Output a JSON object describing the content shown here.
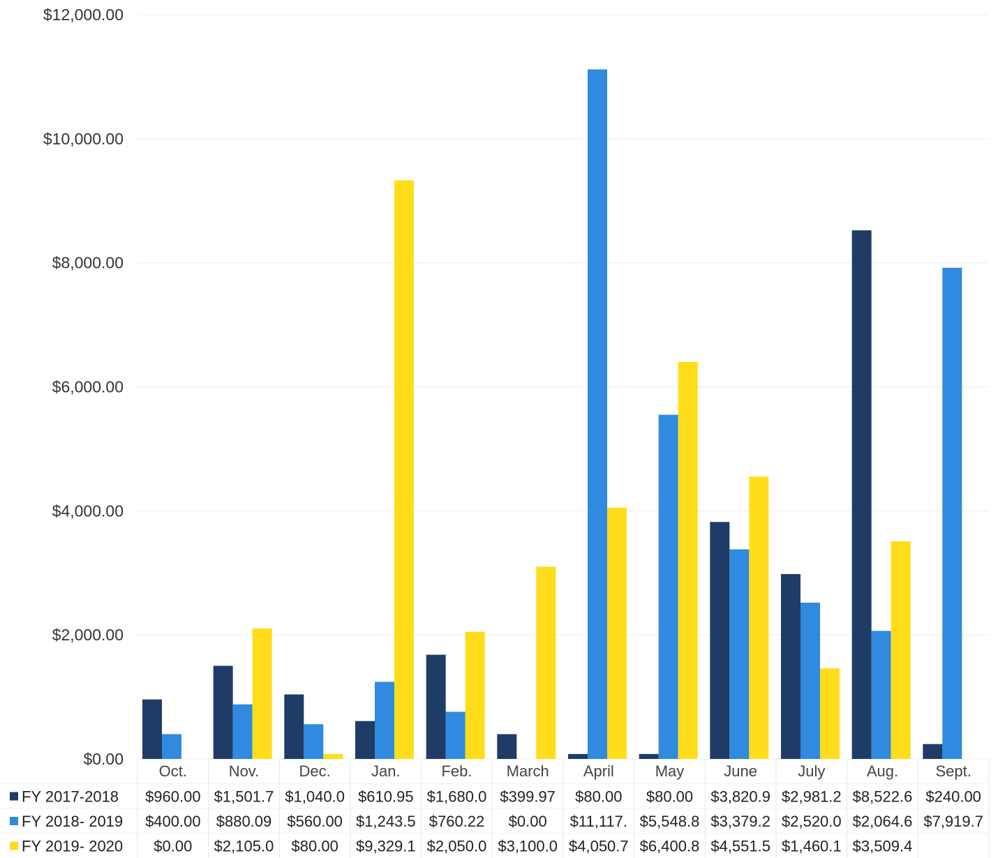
{
  "chart_data": {
    "type": "bar",
    "categories": [
      "Oct.",
      "Nov.",
      "Dec.",
      "Jan.",
      "Feb.",
      "March",
      "April",
      "May",
      "June",
      "July",
      "Aug.",
      "Sept."
    ],
    "ylim": [
      0,
      12000
    ],
    "yticks": [
      {
        "value": 0,
        "label": "$0.00"
      },
      {
        "value": 2000,
        "label": "$2,000.00"
      },
      {
        "value": 4000,
        "label": "$4,000.00"
      },
      {
        "value": 6000,
        "label": "$6,000.00"
      },
      {
        "value": 8000,
        "label": "$8,000.00"
      },
      {
        "value": 10000,
        "label": "$10,000.00"
      },
      {
        "value": 12000,
        "label": "$12,000.00"
      }
    ],
    "grid": true,
    "legend_placement": "left of data table",
    "series": [
      {
        "name": "FY 2017-2018",
        "color": "#1f3c66",
        "values": [
          960.0,
          1501.7,
          1040.0,
          610.95,
          1680.0,
          399.97,
          80.0,
          80.0,
          3820.9,
          2981.2,
          8522.6,
          240.0
        ],
        "table_labels": [
          "$960.00",
          "$1,501.7",
          "$1,040.0",
          "$610.95",
          "$1,680.0",
          "$399.97",
          "$80.00",
          "$80.00",
          "$3,820.9",
          "$2,981.2",
          "$8,522.6",
          "$240.00"
        ]
      },
      {
        "name": "FY 2018- 2019",
        "color": "#2f8ae0",
        "values": [
          400.0,
          880.09,
          560.0,
          1243.5,
          760.22,
          0.0,
          11117,
          5548.8,
          3379.2,
          2520.0,
          2064.6,
          7919.7
        ],
        "table_labels": [
          "$400.00",
          "$880.09",
          "$560.00",
          "$1,243.5",
          "$760.22",
          "$0.00",
          "$11,117.",
          "$5,548.8",
          "$3,379.2",
          "$2,520.0",
          "$2,064.6",
          "$7,919.7"
        ]
      },
      {
        "name": "FY 2019- 2020",
        "color": "#ffdd1a",
        "values": [
          0.0,
          2105.0,
          80.0,
          9329.1,
          2050.0,
          3100.0,
          4050.7,
          6400.8,
          4551.5,
          1460.1,
          3509.4,
          null
        ],
        "table_labels": [
          "$0.00",
          "$2,105.0",
          "$80.00",
          "$9,329.1",
          "$2,050.0",
          "$3,100.0",
          "$4,050.7",
          "$6,400.8",
          "$4,551.5",
          "$1,460.1",
          "$3,509.4",
          ""
        ]
      }
    ]
  }
}
